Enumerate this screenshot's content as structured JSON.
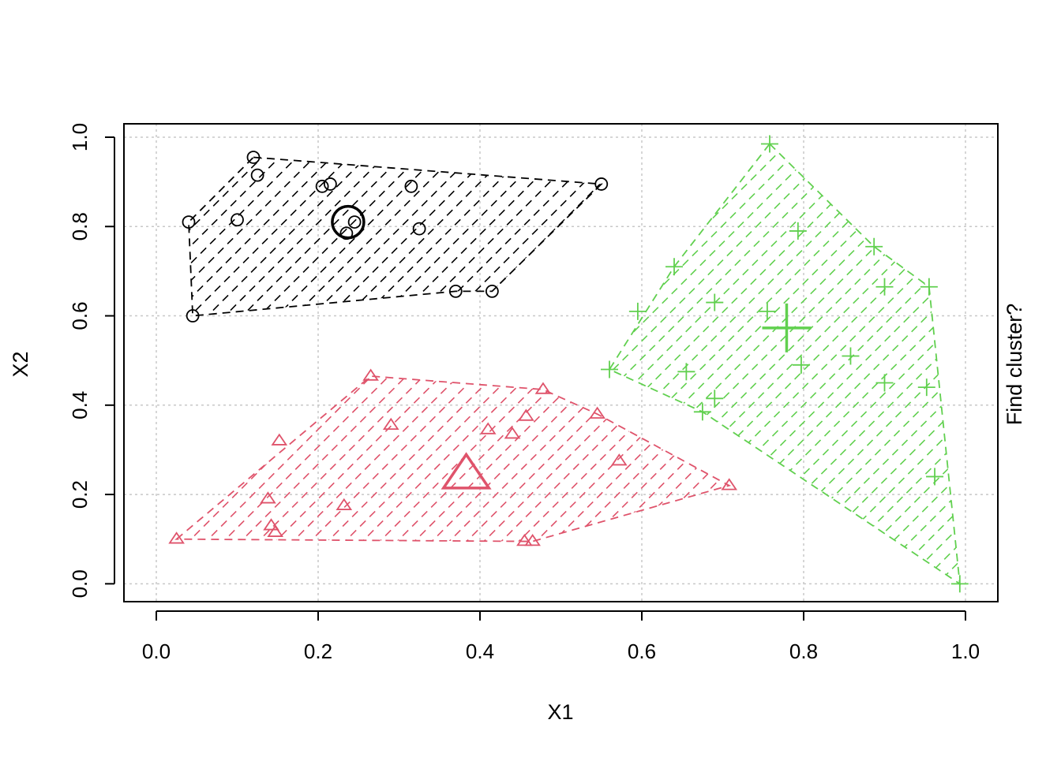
{
  "chart_data": {
    "type": "scatter",
    "title": "",
    "xlabel": "X1",
    "ylabel": "X2",
    "side_label": "Find cluster?",
    "xlim": [
      -0.04,
      1.04
    ],
    "ylim": [
      -0.04,
      1.03
    ],
    "xticks": [
      "0.0",
      "0.2",
      "0.4",
      "0.6",
      "0.8",
      "1.0"
    ],
    "yticks": [
      "0.0",
      "0.2",
      "0.4",
      "0.6",
      "0.8",
      "1.0"
    ],
    "grid": true,
    "series": [
      {
        "marker": "circle",
        "color": "#000000",
        "points": [
          [
            0.04,
            0.81
          ],
          [
            0.045,
            0.6
          ],
          [
            0.1,
            0.815
          ],
          [
            0.12,
            0.955
          ],
          [
            0.125,
            0.915
          ],
          [
            0.205,
            0.89
          ],
          [
            0.215,
            0.895
          ],
          [
            0.235,
            0.785
          ],
          [
            0.245,
            0.81
          ],
          [
            0.315,
            0.89
          ],
          [
            0.325,
            0.795
          ],
          [
            0.37,
            0.655
          ],
          [
            0.415,
            0.655
          ],
          [
            0.55,
            0.895
          ]
        ],
        "hull": [
          [
            0.12,
            0.955
          ],
          [
            0.55,
            0.895
          ],
          [
            0.415,
            0.655
          ],
          [
            0.37,
            0.655
          ],
          [
            0.045,
            0.6
          ],
          [
            0.04,
            0.81
          ]
        ],
        "centroid": [
          0.237,
          0.81
        ]
      },
      {
        "marker": "triangle",
        "color": "#DF536B",
        "points": [
          [
            0.025,
            0.1
          ],
          [
            0.138,
            0.19
          ],
          [
            0.142,
            0.13
          ],
          [
            0.147,
            0.115
          ],
          [
            0.152,
            0.32
          ],
          [
            0.232,
            0.175
          ],
          [
            0.265,
            0.465
          ],
          [
            0.29,
            0.355
          ],
          [
            0.41,
            0.345
          ],
          [
            0.44,
            0.335
          ],
          [
            0.455,
            0.095
          ],
          [
            0.457,
            0.375
          ],
          [
            0.465,
            0.095
          ],
          [
            0.478,
            0.435
          ],
          [
            0.545,
            0.38
          ],
          [
            0.572,
            0.275
          ],
          [
            0.708,
            0.22
          ]
        ],
        "hull": [
          [
            0.025,
            0.1
          ],
          [
            0.265,
            0.465
          ],
          [
            0.478,
            0.435
          ],
          [
            0.545,
            0.38
          ],
          [
            0.708,
            0.22
          ],
          [
            0.465,
            0.095
          ],
          [
            0.455,
            0.095
          ]
        ],
        "centroid": [
          0.383,
          0.243
        ]
      },
      {
        "marker": "plus",
        "color": "#61D04F",
        "points": [
          [
            0.56,
            0.48
          ],
          [
            0.595,
            0.61
          ],
          [
            0.64,
            0.71
          ],
          [
            0.655,
            0.475
          ],
          [
            0.675,
            0.385
          ],
          [
            0.69,
            0.63
          ],
          [
            0.69,
            0.415
          ],
          [
            0.755,
            0.61
          ],
          [
            0.758,
            0.985
          ],
          [
            0.793,
            0.79
          ],
          [
            0.797,
            0.49
          ],
          [
            0.858,
            0.51
          ],
          [
            0.887,
            0.755
          ],
          [
            0.9,
            0.45
          ],
          [
            0.9,
            0.665
          ],
          [
            0.952,
            0.44
          ],
          [
            0.955,
            0.665
          ],
          [
            0.962,
            0.24
          ],
          [
            0.993,
            0.0
          ]
        ],
        "hull": [
          [
            0.758,
            0.985
          ],
          [
            0.887,
            0.755
          ],
          [
            0.955,
            0.665
          ],
          [
            0.993,
            0.0
          ],
          [
            0.675,
            0.385
          ],
          [
            0.56,
            0.48
          ],
          [
            0.64,
            0.71
          ]
        ],
        "centroid": [
          0.779,
          0.573
        ]
      }
    ]
  }
}
